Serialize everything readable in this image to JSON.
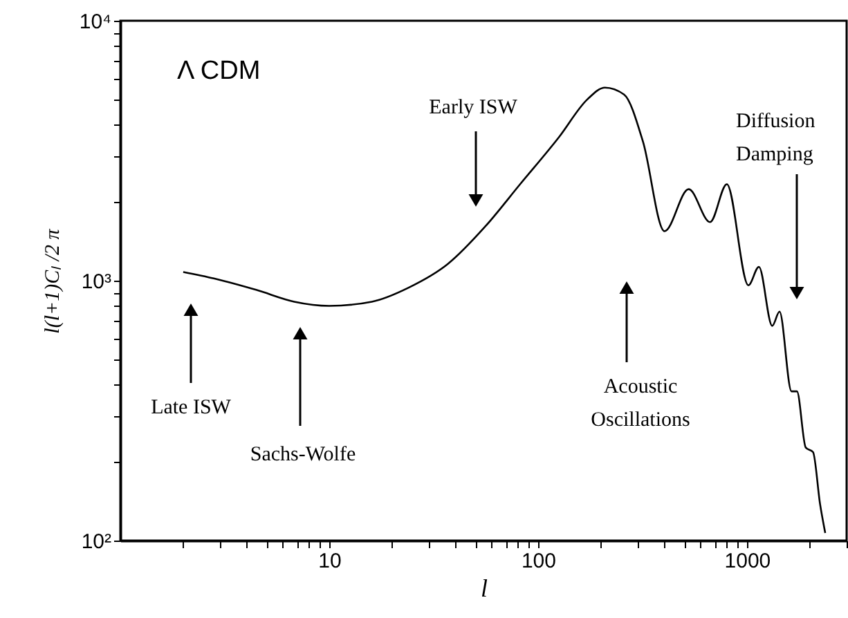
{
  "chart_data": {
    "type": "line",
    "xlabel": "l",
    "ylabel": "l(l+1)Cₗ /2 π",
    "log": "xy",
    "grid": false,
    "marker": "none",
    "line_style": "solid",
    "xlim": [
      1,
      3000
    ],
    "ylim": [
      100,
      10000
    ],
    "xticks": [
      {
        "value": 2,
        "label": null
      },
      {
        "value": 3,
        "label": null
      },
      {
        "value": 4,
        "label": null
      },
      {
        "value": 5,
        "label": null
      },
      {
        "value": 6,
        "label": null
      },
      {
        "value": 7,
        "label": null
      },
      {
        "value": 8,
        "label": null
      },
      {
        "value": 9,
        "label": null
      },
      10,
      {
        "value": 20,
        "label": null
      },
      {
        "value": 30,
        "label": null
      },
      {
        "value": 40,
        "label": null
      },
      {
        "value": 50,
        "label": null
      },
      {
        "value": 60,
        "label": null
      },
      {
        "value": 70,
        "label": null
      },
      {
        "value": 80,
        "label": null
      },
      {
        "value": 90,
        "label": null
      },
      100,
      {
        "value": 200,
        "label": null
      },
      {
        "value": 300,
        "label": null
      },
      {
        "value": 400,
        "label": null
      },
      {
        "value": 500,
        "label": null
      },
      {
        "value": 600,
        "label": null
      },
      {
        "value": 700,
        "label": null
      },
      {
        "value": 800,
        "label": null
      },
      {
        "value": 900,
        "label": null
      },
      1000,
      {
        "value": 2000,
        "label": null
      },
      {
        "value": 3000,
        "label": null
      }
    ],
    "yticks": [
      {
        "value": 100,
        "label": "10²"
      },
      {
        "value": 200,
        "label": null
      },
      {
        "value": 300,
        "label": null
      },
      {
        "value": 400,
        "label": null
      },
      {
        "value": 500,
        "label": null
      },
      {
        "value": 600,
        "label": null
      },
      {
        "value": 700,
        "label": null
      },
      {
        "value": 800,
        "label": null
      },
      {
        "value": 900,
        "label": null
      },
      {
        "value": 1000,
        "label": "10³"
      },
      {
        "value": 2000,
        "label": null
      },
      {
        "value": 3000,
        "label": null
      },
      {
        "value": 4000,
        "label": null
      },
      {
        "value": 5000,
        "label": null
      },
      {
        "value": 6000,
        "label": null
      },
      {
        "value": 7000,
        "label": null
      },
      {
        "value": 8000,
        "label": null
      },
      {
        "value": 9000,
        "label": null
      },
      {
        "value": 10000,
        "label": "10⁴"
      }
    ],
    "series": [
      {
        "color": "#000000",
        "x": [
          2,
          2.8,
          4.5,
          6.8,
          10,
          16,
          24,
          37,
          56,
          82,
          126,
          172,
          209,
          258,
          318,
          403,
          526,
          666,
          801,
          1016,
          1141,
          1321,
          1432,
          1634,
          1735,
          1911,
          2072,
          2239,
          2370
        ],
        "values": [
          1080,
          1020,
          920,
          830,
          800,
          830,
          940,
          1160,
          1620,
          2350,
          3570,
          4980,
          5530,
          5200,
          3420,
          1550,
          2250,
          1680,
          2350,
          960,
          1130,
          670,
          760,
          375,
          375,
          228,
          219,
          138,
          107
        ]
      }
    ],
    "annotations": [
      "Λ CDM",
      "Late ISW",
      "Sachs-Wolfe",
      "Early ISW",
      "Acoustic\nOscillations",
      "Diffusion\nDamping"
    ]
  }
}
